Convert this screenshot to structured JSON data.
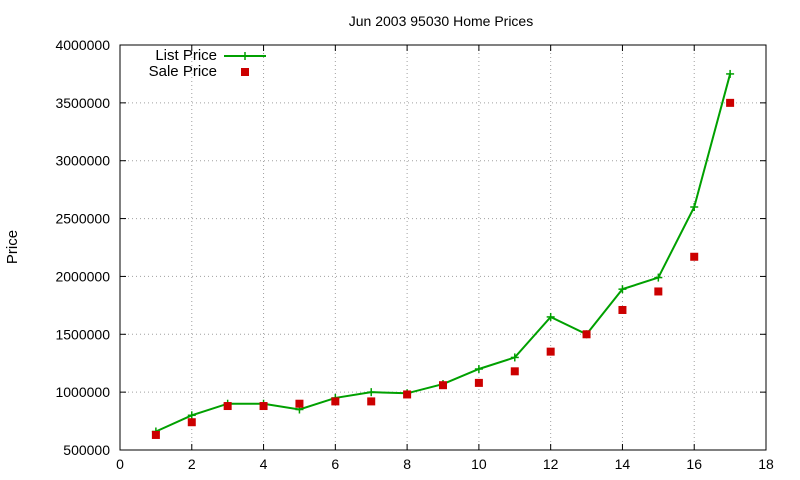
{
  "chart_data": {
    "type": "line",
    "title": "Jun 2003 95030 Home Prices",
    "xlabel": "",
    "ylabel": "Price",
    "xlim": [
      0,
      18
    ],
    "ylim": [
      500000,
      4000000
    ],
    "xticks": [
      0,
      2,
      4,
      6,
      8,
      10,
      12,
      14,
      16,
      18
    ],
    "yticks": [
      500000,
      1000000,
      1500000,
      2000000,
      2500000,
      3000000,
      3500000,
      4000000
    ],
    "grid": true,
    "legend_position": "top-left",
    "series": [
      {
        "name": "List Price",
        "style": "line+cross",
        "color": "#00a000",
        "x": [
          1,
          2,
          3,
          4,
          5,
          6,
          7,
          8,
          9,
          10,
          11,
          12,
          13,
          14,
          15,
          16,
          17
        ],
        "values": [
          660000,
          800000,
          900000,
          900000,
          850000,
          950000,
          1000000,
          990000,
          1070000,
          1200000,
          1300000,
          1650000,
          1500000,
          1890000,
          1990000,
          2600000,
          3750000
        ]
      },
      {
        "name": "Sale Price",
        "style": "square",
        "color": "#cc0000",
        "x": [
          1,
          2,
          3,
          4,
          5,
          6,
          7,
          8,
          9,
          10,
          11,
          12,
          13,
          14,
          15,
          16,
          17
        ],
        "values": [
          630000,
          740000,
          880000,
          880000,
          900000,
          920000,
          920000,
          980000,
          1060000,
          1080000,
          1180000,
          1350000,
          1500000,
          1710000,
          1870000,
          2170000,
          3500000
        ]
      }
    ]
  }
}
